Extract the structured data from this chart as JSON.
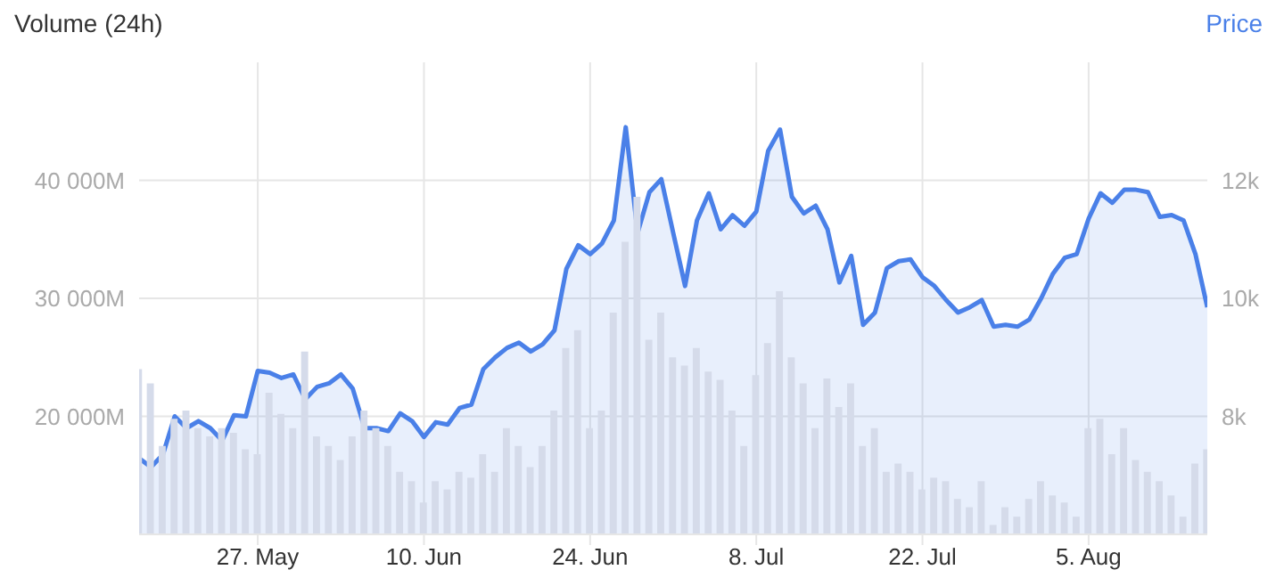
{
  "chart_data": {
    "type": "bar",
    "ylabel": "Volume (24h)",
    "y2label": "Price",
    "x": [
      "--05-17",
      "--05-18",
      "--05-19",
      "--05-20",
      "--05-21",
      "--05-22",
      "--05-23",
      "--05-24",
      "--05-25",
      "--05-26",
      "--05-27",
      "--05-28",
      "--05-29",
      "--05-30",
      "--05-31",
      "--06-01",
      "--06-02",
      "--06-03",
      "--06-04",
      "--06-05",
      "--06-06",
      "--06-07",
      "--06-08",
      "--06-09",
      "--06-10",
      "--06-11",
      "--06-12",
      "--06-13",
      "--06-14",
      "--06-15",
      "--06-16",
      "--06-17",
      "--06-18",
      "--06-19",
      "--06-20",
      "--06-21",
      "--06-22",
      "--06-23",
      "--06-24",
      "--06-25",
      "--06-26",
      "--06-27",
      "--06-28",
      "--06-29",
      "--06-30",
      "--07-01",
      "--07-02",
      "--07-03",
      "--07-04",
      "--07-05",
      "--07-06",
      "--07-07",
      "--07-08",
      "--07-09",
      "--07-10",
      "--07-11",
      "--07-12",
      "--07-13",
      "--07-14",
      "--07-15",
      "--07-16",
      "--07-17",
      "--07-18",
      "--07-19",
      "--07-20",
      "--07-21",
      "--07-22",
      "--07-23",
      "--07-24",
      "--07-25",
      "--07-26",
      "--07-27",
      "--07-28",
      "--07-29",
      "--07-30",
      "--07-31",
      "--08-01",
      "--08-02",
      "--08-03",
      "--08-04",
      "--08-05",
      "--08-06",
      "--08-07",
      "--08-08",
      "--08-09",
      "--08-10",
      "--08-11",
      "--08-12",
      "--08-13",
      "--08-14",
      "--08-15"
    ],
    "series": [
      {
        "color": "#d5dbea",
        "values": [
          24000,
          22800,
          17500,
          19800,
          20500,
          19000,
          18300,
          19000,
          18600,
          17200,
          16800,
          22000,
          20200,
          19000,
          25500,
          18300,
          17500,
          16300,
          18300,
          20500,
          19000,
          17500,
          15300,
          14500,
          12700,
          14500,
          13800,
          15300,
          14800,
          16800,
          15300,
          19000,
          17500,
          15700,
          17500,
          20500,
          25800,
          27300,
          19000,
          20500,
          28800,
          34800,
          38600,
          26500,
          28800,
          25000,
          24300,
          25800,
          23800,
          23100,
          20500,
          17500,
          23500,
          26200,
          30600,
          25000,
          22800,
          19000,
          23200,
          20800,
          22800,
          17500,
          19000,
          15300,
          16000,
          15300,
          13800,
          14800,
          14500,
          13000,
          12300,
          14500,
          10800,
          12300,
          11500,
          13000,
          14500,
          13300,
          12700,
          11500,
          19000,
          19800,
          16800,
          19000,
          16300,
          15300,
          14500,
          13300,
          11500,
          16000,
          17200
        ]
      },
      {
        "type": "area",
        "axis": "y2",
        "color": "#4a80e8",
        "values": [
          7290,
          7140,
          7350,
          8000,
          7800,
          7920,
          7800,
          7590,
          8020,
          8000,
          8770,
          8740,
          8650,
          8710,
          8290,
          8500,
          8560,
          8710,
          8470,
          7800,
          7800,
          7750,
          8050,
          7920,
          7650,
          7900,
          7860,
          8140,
          8200,
          8800,
          9000,
          9160,
          9250,
          9100,
          9220,
          9460,
          10500,
          10900,
          10750,
          10930,
          11320,
          12900,
          11110,
          11800,
          12020,
          11110,
          10210,
          11320,
          11780,
          11170,
          11410,
          11230,
          11470,
          12500,
          12860,
          11720,
          11440,
          11570,
          11170,
          10270,
          10720,
          9550,
          9760,
          10510,
          10630,
          10660,
          10360,
          10210,
          9970,
          9760,
          9850,
          9970,
          9520,
          9550,
          9520,
          9640,
          10000,
          10420,
          10690,
          10750,
          11350,
          11780,
          11620,
          11840,
          11840,
          11800,
          11380,
          11410,
          11320,
          10750,
          9850
        ]
      }
    ],
    "xlim": [
      "--05-17",
      "--08-15"
    ],
    "xticks": [
      {
        "value": "--05-27",
        "label": "27. May"
      },
      {
        "value": "--06-10",
        "label": "10. Jun"
      },
      {
        "value": "--06-24",
        "label": "24. Jun"
      },
      {
        "value": "--07-08",
        "label": "8. Jul"
      },
      {
        "value": "--07-22",
        "label": "22. Jul"
      },
      {
        "value": "--08-05",
        "label": "5. Aug"
      }
    ],
    "ylim": [
      10000,
      50000
    ],
    "yticks": [
      {
        "value": 20000,
        "label": "20 000M"
      },
      {
        "value": 30000,
        "label": "30 000M"
      },
      {
        "value": 40000,
        "label": "40 000M"
      }
    ],
    "y2lim": [
      6000,
      14000
    ],
    "y2ticks": [
      {
        "value": 8000,
        "label": "8k"
      },
      {
        "value": 10000,
        "label": "10k"
      },
      {
        "value": 12000,
        "label": "12k"
      }
    ],
    "grid": true
  }
}
